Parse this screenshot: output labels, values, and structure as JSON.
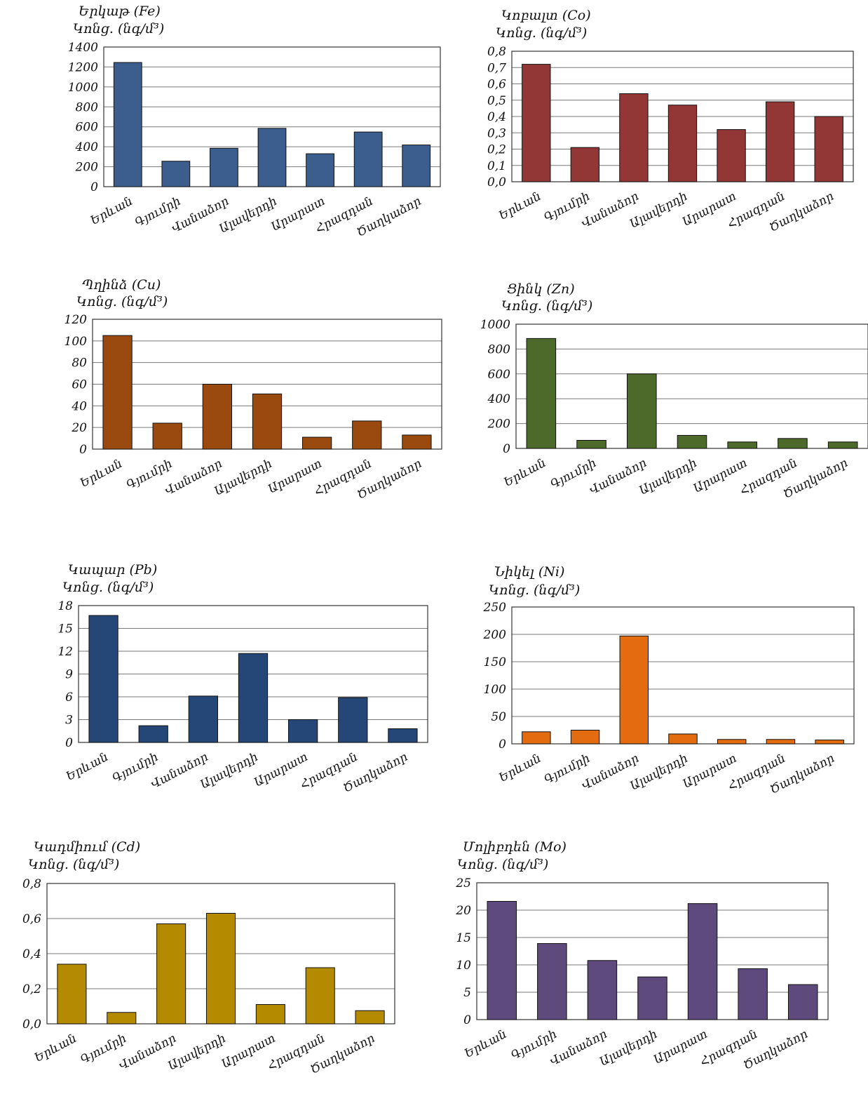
{
  "chart_data": [
    {
      "type": "bar",
      "title": "Երկաթ (Fe)",
      "ylabel": "Կոնց. (նգ/մ³)",
      "categories": [
        "Երևան",
        "Գյումրի",
        "Վանաձոր",
        "Ալավերդի",
        "Արարատ",
        "Հրազդան",
        "Ծաղկաձոր"
      ],
      "values": [
        1245,
        255,
        385,
        585,
        330,
        548,
        418
      ],
      "ylim": [
        0,
        1400
      ],
      "yticks": [
        "0",
        "200",
        "400",
        "600",
        "800",
        "1000",
        "1200",
        "1400"
      ],
      "color": "#3b5e8f",
      "grid": true
    },
    {
      "type": "bar",
      "title": "Կոբալտ (Co)",
      "ylabel": "Կոնց. (նգ/մ³)",
      "categories": [
        "Երևան",
        "Գյումրի",
        "Վանաձոր",
        "Ալավերդի",
        "Արարատ",
        "Հրազդան",
        "Ծաղկաձոր"
      ],
      "values": [
        0.72,
        0.21,
        0.54,
        0.47,
        0.32,
        0.49,
        0.4
      ],
      "ylim": [
        0,
        0.8
      ],
      "yticks": [
        "0,0",
        "0,1",
        "0,2",
        "0,3",
        "0,4",
        "0,5",
        "0,6",
        "0,7",
        "0,8"
      ],
      "color": "#933636",
      "grid": true
    },
    {
      "type": "bar",
      "title": "Պղինձ (Cu)",
      "ylabel": "Կոնց. (նգ/մ³)",
      "categories": [
        "Երևան",
        "Գյումրի",
        "Վանաձոր",
        "Ալավերդի",
        "Արարատ",
        "Հրազդան",
        "Ծաղկաձոր"
      ],
      "values": [
        105,
        24,
        60,
        51,
        11,
        26,
        13
      ],
      "ylim": [
        0,
        120
      ],
      "yticks": [
        "0",
        "20",
        "40",
        "60",
        "80",
        "100",
        "120"
      ],
      "color": "#9a4a0e",
      "grid": true
    },
    {
      "type": "bar",
      "title": "Ցինկ (Zn)",
      "ylabel": "Կոնց. (նգ/մ³)",
      "categories": [
        "Երևան",
        "Գյումրի",
        "Վանաձոր",
        "Ալավերդի",
        "Արարատ",
        "Հրազդան",
        "Ծաղկաձոր"
      ],
      "values": [
        885,
        65,
        600,
        105,
        52,
        80,
        52
      ],
      "ylim": [
        0,
        1000
      ],
      "yticks": [
        "0",
        "200",
        "400",
        "600",
        "800",
        "1000"
      ],
      "color": "#4e6a2b",
      "grid": true
    },
    {
      "type": "bar",
      "title": "Կապար (Pb)",
      "ylabel": "Կոնց. (նգ/մ³)",
      "categories": [
        "Երևան",
        "Գյումրի",
        "Վանաձոր",
        "Ալավերդի",
        "Արարատ",
        "Հրազդան",
        "Ծաղկաձոր"
      ],
      "values": [
        16.7,
        2.2,
        6.1,
        11.7,
        3.0,
        5.9,
        1.8
      ],
      "ylim": [
        0,
        18
      ],
      "yticks": [
        "0",
        "3",
        "6",
        "9",
        "12",
        "15",
        "18"
      ],
      "color": "#244777",
      "grid": true
    },
    {
      "type": "bar",
      "title": "Նիկել (Ni)",
      "ylabel": "Կոնց. (նգ/մ³)",
      "categories": [
        "Երևան",
        "Գյումրի",
        "Վանաձոր",
        "Ալավերդի",
        "Արարատ",
        "Հրազդան",
        "Ծաղկաձոր"
      ],
      "values": [
        22,
        25,
        197,
        18,
        8,
        8,
        7
      ],
      "ylim": [
        0,
        250
      ],
      "yticks": [
        "0",
        "50",
        "100",
        "150",
        "200",
        "250"
      ],
      "color": "#e46c10",
      "grid": true
    },
    {
      "type": "bar",
      "title": "Կադմիում (Cd)",
      "ylabel": "Կոնց. (նգ/մ³)",
      "categories": [
        "Երևան",
        "Գյումրի",
        "Վանաձոր",
        "Ալավերդի",
        "Արարատ",
        "Հրազդան",
        "Ծաղկաձոր"
      ],
      "values": [
        0.34,
        0.065,
        0.57,
        0.63,
        0.11,
        0.32,
        0.075
      ],
      "ylim": [
        0,
        0.8
      ],
      "yticks": [
        "0,0",
        "0,2",
        "0,4",
        "0,6",
        "0,8"
      ],
      "color": "#b38a00",
      "grid": true
    },
    {
      "type": "bar",
      "title": "Մոլիբդեն (Mo)",
      "ylabel": "Կոնց. (նգ/մ³)",
      "categories": [
        "Երևան",
        "Գյումրի",
        "Վանաձոր",
        "Ալավերդի",
        "Արարատ",
        "Հրազդան",
        "Ծաղկաձոր"
      ],
      "values": [
        21.6,
        13.9,
        10.8,
        7.8,
        21.2,
        9.3,
        6.4
      ],
      "ylim": [
        0,
        25
      ],
      "yticks": [
        "0",
        "5",
        "10",
        "15",
        "20",
        "25"
      ],
      "color": "#5f4a7e",
      "grid": true
    }
  ]
}
